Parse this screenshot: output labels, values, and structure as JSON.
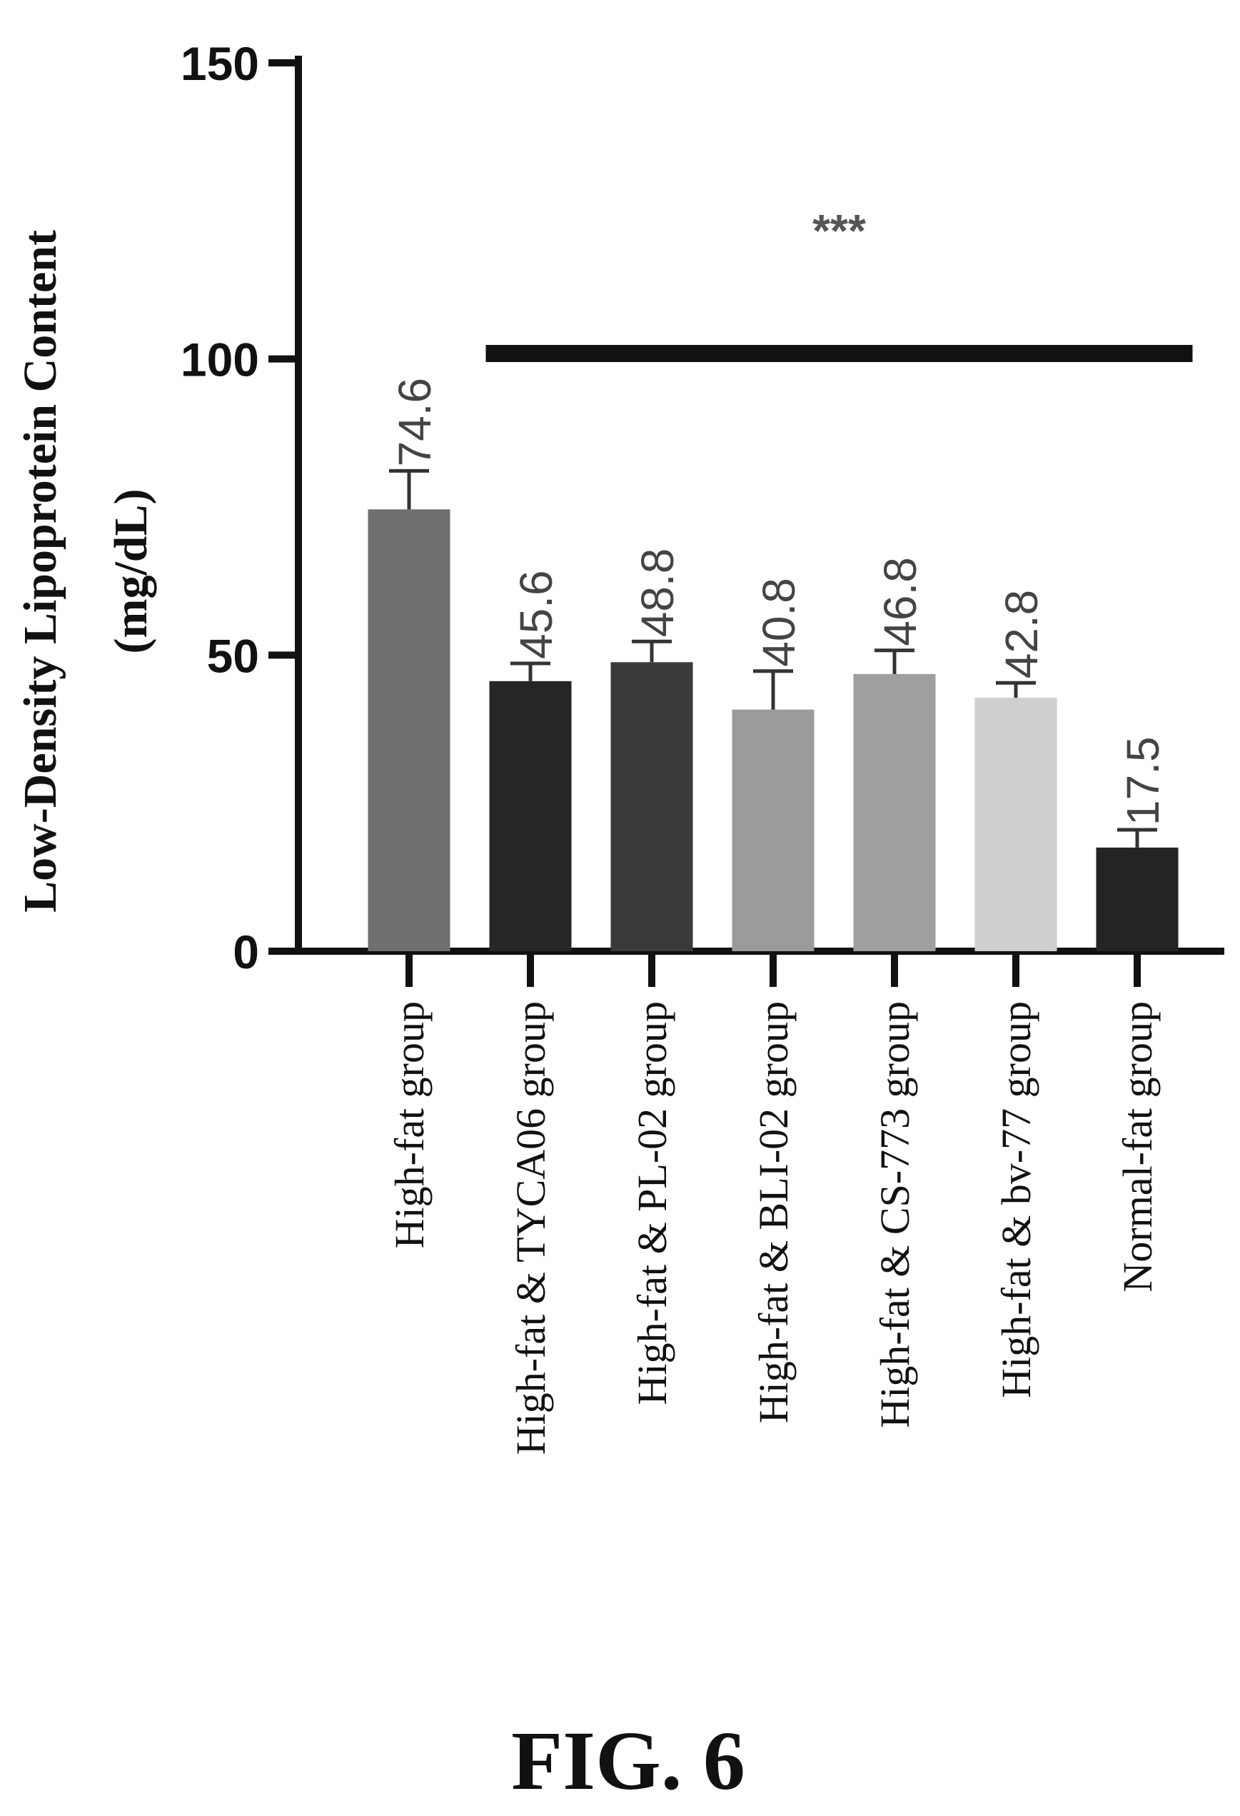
{
  "chart_data": {
    "type": "bar",
    "ylabel": "Low-Density Lipoprotein Content",
    "yunit": "(mg/dL)",
    "ylim": [
      0,
      150
    ],
    "yticks": [
      0,
      50,
      100,
      150
    ],
    "categories": [
      "High-fat group",
      "High-fat & TYCA06 group",
      "High-fat & PL-02 group",
      "High-fat & BLI-02 group",
      "High-fat & CS-773 group",
      "High-fat & bv-77 group",
      "Normal-fat group"
    ],
    "values": [
      74.6,
      45.6,
      48.8,
      40.8,
      46.8,
      42.8,
      17.5
    ],
    "value_labels": [
      "74.6",
      "45.6",
      "48.8",
      "40.8",
      "46.8",
      "42.8",
      "17.5"
    ],
    "errors": [
      6.5,
      3.0,
      3.5,
      6.5,
      4.0,
      2.5,
      3.0
    ],
    "colors": [
      "#6f6f6f",
      "#262626",
      "#3a3a3a",
      "#9b9b9b",
      "#9f9f9f",
      "#cfcfcf",
      "#242424"
    ],
    "significance": {
      "label": "***",
      "span_from": 1,
      "span_to": 6
    },
    "grid": false,
    "legend": "none"
  },
  "figure_label": "FIG. 6"
}
